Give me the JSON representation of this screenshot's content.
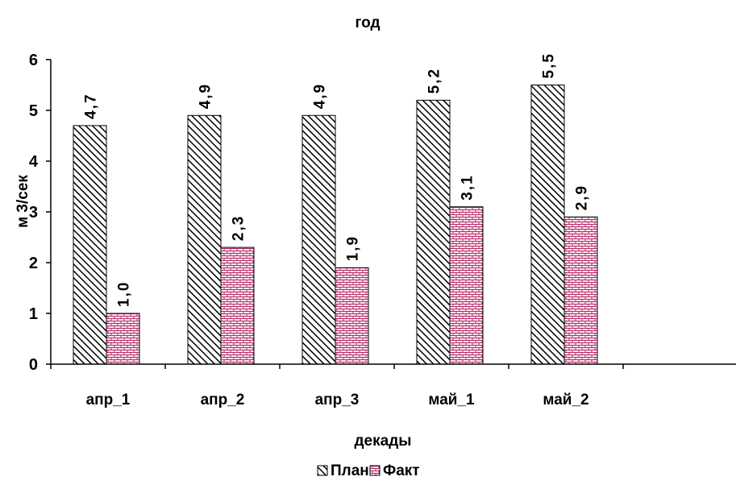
{
  "chart_data": {
    "type": "bar",
    "title": "год",
    "xlabel": "декады",
    "ylabel": "м 3/сек",
    "categories": [
      "апр_1",
      "апр_2",
      "апр_3",
      "май_1",
      "май_2"
    ],
    "series": [
      {
        "name": "План",
        "values": [
          4.7,
          4.9,
          4.9,
          5.2,
          5.5
        ],
        "labels": [
          "4,7",
          "4,9",
          "4,9",
          "5,2",
          "5,5"
        ],
        "pattern": "diagonal-hatch",
        "color": "#000000"
      },
      {
        "name": "Факт",
        "values": [
          1.0,
          2.3,
          1.9,
          3.1,
          2.9
        ],
        "labels": [
          "1,0",
          "2,3",
          "1,9",
          "3,1",
          "2,9"
        ],
        "pattern": "brick",
        "color": "#ffe6f0",
        "line_color": "#b0306a"
      }
    ],
    "ylim": [
      0,
      6
    ],
    "yticks": [
      "0",
      "1",
      "2",
      "3",
      "4",
      "5",
      "6"
    ],
    "grid": false,
    "legend": "bottom"
  }
}
